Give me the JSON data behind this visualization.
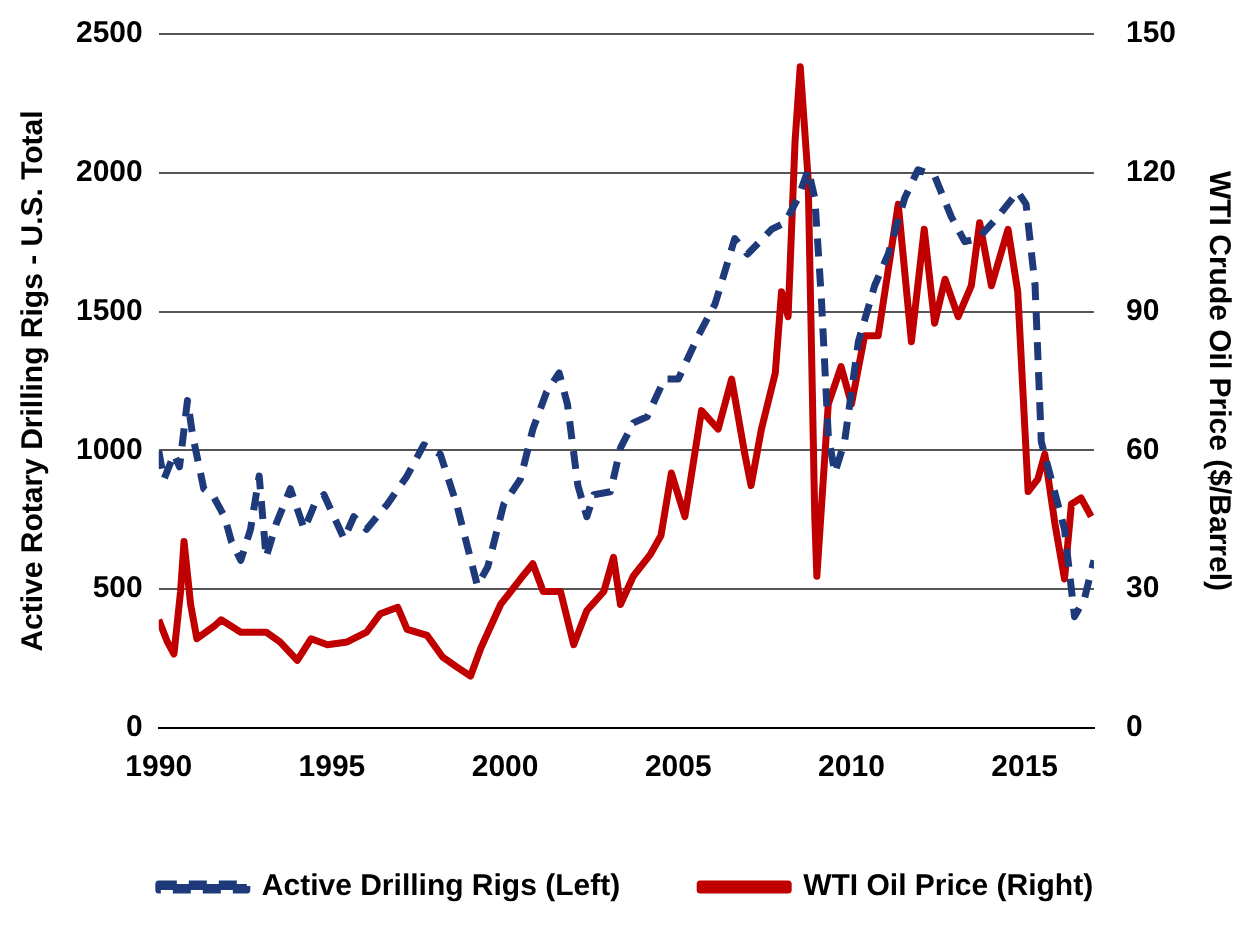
{
  "chart_data": {
    "type": "line",
    "xlabel": null,
    "ylabel": "Active Rotary Drilling Rigs - U.S. Total",
    "y2label": "WTI Crude Oil Price ($/Barrel)",
    "xlim": [
      1990,
      2017
    ],
    "xticks": [
      1990,
      1995,
      2000,
      2005,
      2010,
      2015
    ],
    "ylim": [
      0,
      2500
    ],
    "yticks": [
      0,
      500,
      1000,
      1500,
      2000,
      2500
    ],
    "y2lim": [
      0,
      150
    ],
    "y2ticks": [
      0,
      30,
      60,
      90,
      120,
      150
    ],
    "grid": "y",
    "legend": "bottom",
    "marker": "none",
    "series": [
      {
        "name": "Active Drilling Rigs (Left)",
        "color": "#1f3a7a",
        "line_style": "dashed",
        "x": [
          1990.0,
          1990.15,
          1990.44,
          1990.6,
          1990.83,
          1990.98,
          1991.3,
          1991.6,
          1991.9,
          1992.1,
          1992.37,
          1992.65,
          1992.9,
          1993.1,
          1993.4,
          1993.8,
          1994.2,
          1994.5,
          1994.77,
          1995.35,
          1995.63,
          1996.0,
          1996.6,
          1997.17,
          1997.65,
          1998.13,
          1998.6,
          1999.2,
          1999.5,
          1999.96,
          2000.44,
          2000.8,
          2001.2,
          2001.56,
          2001.8,
          2002.1,
          2002.36,
          2002.56,
          2003.04,
          2003.33,
          2003.7,
          2004.1,
          2004.6,
          2005.0,
          2005.58,
          2006.06,
          2006.63,
          2007.0,
          2007.7,
          2008.08,
          2008.46,
          2008.75,
          2008.94,
          2009.13,
          2009.33,
          2009.52,
          2009.8,
          2010.2,
          2010.67,
          2011.06,
          2011.54,
          2011.92,
          2012.4,
          2012.88,
          2013.27,
          2013.65,
          2014.23,
          2014.8,
          2015.04,
          2015.3,
          2015.48,
          2015.77,
          2016.15,
          2016.44,
          2016.73,
          2017.0
        ],
        "values": [
          998,
          896,
          986,
          941,
          1180,
          1054,
          862,
          829,
          761,
          671,
          604,
          716,
          908,
          615,
          739,
          862,
          716,
          806,
          840,
          682,
          761,
          716,
          806,
          908,
          1020,
          986,
          806,
          513,
          581,
          806,
          896,
          1076,
          1211,
          1279,
          1166,
          874,
          761,
          840,
          851,
          1009,
          1099,
          1121,
          1257,
          1257,
          1414,
          1527,
          1763,
          1707,
          1797,
          1820,
          1910,
          2011,
          1910,
          1549,
          1054,
          919,
          1031,
          1392,
          1594,
          1707,
          1910,
          2011,
          1989,
          1842,
          1752,
          1763,
          1842,
          1932,
          1887,
          1594,
          1031,
          896,
          716,
          401,
          468,
          604
        ]
      },
      {
        "name": "WTI Oil Price (Right)",
        "color": "#c00000",
        "axis": "y2",
        "line_style": "solid",
        "x": [
          1990.0,
          1990.25,
          1990.44,
          1990.63,
          1990.73,
          1990.92,
          1991.1,
          1991.6,
          1991.8,
          1992.37,
          1993.1,
          1993.5,
          1994.0,
          1994.4,
          1994.87,
          1995.44,
          1996.0,
          1996.4,
          1996.9,
          1997.17,
          1997.75,
          1998.2,
          1998.6,
          1999.0,
          1999.3,
          1999.87,
          2000.44,
          2000.8,
          2001.1,
          2001.6,
          2001.98,
          2002.36,
          2002.85,
          2003.13,
          2003.33,
          2003.7,
          2004.2,
          2004.5,
          2004.8,
          2005.19,
          2005.67,
          2006.15,
          2006.54,
          2006.92,
          2007.1,
          2007.4,
          2007.8,
          2007.98,
          2008.17,
          2008.37,
          2008.52,
          2008.75,
          2008.94,
          2009.0,
          2009.33,
          2009.7,
          2010.0,
          2010.38,
          2010.77,
          2011.35,
          2011.73,
          2012.1,
          2012.4,
          2012.7,
          2013.08,
          2013.46,
          2013.7,
          2014.04,
          2014.52,
          2014.8,
          2015.1,
          2015.38,
          2015.58,
          2015.87,
          2016.15,
          2016.35,
          2016.63,
          2016.92
        ],
        "values": [
          23.4,
          18.6,
          16.0,
          29.5,
          40.3,
          26.7,
          19.3,
          22.0,
          23.4,
          20.7,
          20.7,
          18.6,
          14.6,
          19.3,
          18.0,
          18.6,
          20.7,
          24.7,
          26.1,
          21.3,
          20.0,
          15.3,
          13.2,
          11.2,
          17.3,
          26.7,
          32.2,
          35.5,
          29.5,
          29.5,
          18.0,
          25.4,
          29.5,
          36.9,
          26.7,
          32.8,
          37.6,
          41.6,
          55.1,
          45.7,
          68.6,
          64.6,
          75.4,
          59.2,
          52.4,
          64.6,
          76.7,
          94.3,
          88.9,
          126.7,
          142.9,
          118.6,
          45.7,
          32.8,
          70.0,
          78.1,
          70.0,
          84.8,
          84.8,
          113.2,
          83.5,
          107.8,
          87.5,
          97.0,
          88.9,
          95.6,
          109.2,
          95.6,
          107.8,
          94.3,
          51.1,
          53.8,
          59.2,
          44.3,
          32.2,
          48.4,
          49.7,
          45.7
        ]
      }
    ]
  }
}
